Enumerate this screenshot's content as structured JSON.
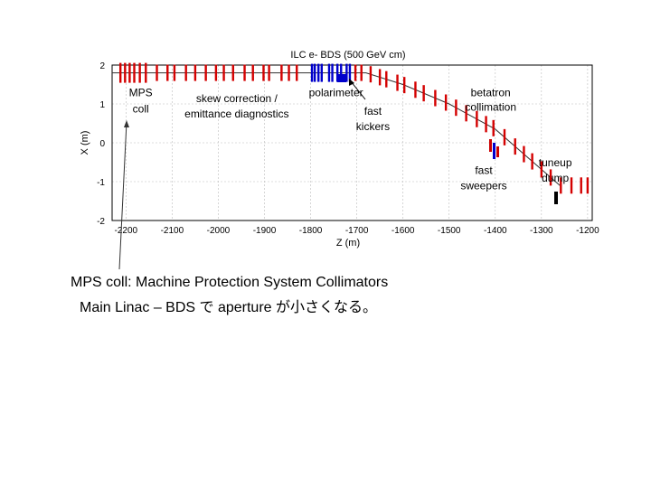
{
  "chart_data": {
    "type": "diagram",
    "title": "ILC e- BDS (500 GeV cm)",
    "xlabel": "Z (m)",
    "ylabel": "X (m)",
    "xlim": [
      -2230,
      -1190
    ],
    "ylim": [
      -2,
      2
    ],
    "xticks": [
      -2200,
      -2100,
      -2000,
      -1900,
      -1800,
      -1700,
      -1600,
      -1500,
      -1400,
      -1300,
      -1200
    ],
    "yticks": [
      2,
      1,
      0,
      -1,
      -2
    ],
    "grid": true,
    "beamline": [
      {
        "z": -2230,
        "x": 1.8
      },
      {
        "z": -1680,
        "x": 1.8
      },
      {
        "z": -1600,
        "x": 1.5
      },
      {
        "z": -1500,
        "x": 1.0
      },
      {
        "z": -1400,
        "x": 0.35
      },
      {
        "z": -1260,
        "x": -1.1
      }
    ],
    "red_elements_z": [
      -2212,
      -2202,
      -2192,
      -2182,
      -2170,
      -2157,
      -2133,
      -2110,
      -2095,
      -2070,
      -2050,
      -2027,
      -2005,
      -1988,
      -1968,
      -1943,
      -1925,
      -1902,
      -1890,
      -1863,
      -1847,
      -1830,
      -1703,
      -1690,
      -1670,
      -1650,
      -1636,
      -1612,
      -1597,
      -1573,
      -1555,
      -1530,
      -1507,
      -1485,
      -1463,
      -1440,
      -1420,
      -1404,
      -1380,
      -1357,
      -1338,
      -1320,
      -1300,
      -1280,
      -1258,
      -1235,
      -1214,
      -1200
    ],
    "blue_elements_z": [
      -1797,
      -1791,
      -1783,
      -1776,
      -1760,
      -1753,
      -1742,
      -1734,
      -1722,
      -1715
    ],
    "labels": [
      {
        "text": "MPS",
        "z": -2168,
        "x": 1.2
      },
      {
        "text": "coll",
        "z": -2168,
        "x": 0.78
      },
      {
        "text": "skew correction /",
        "z": -1960,
        "x": 1.05
      },
      {
        "text": "emittance diagnostics",
        "z": -1960,
        "x": 0.65
      },
      {
        "text": "polarimeter",
        "z": -1745,
        "x": 1.2
      },
      {
        "text": "fast",
        "z": -1665,
        "x": 0.72
      },
      {
        "text": "kickers",
        "z": -1665,
        "x": 0.32
      },
      {
        "text": "betatron",
        "z": -1410,
        "x": 1.2
      },
      {
        "text": "collimation",
        "z": -1410,
        "x": 0.82
      },
      {
        "text": "fast",
        "z": -1425,
        "x": -0.8
      },
      {
        "text": "sweepers",
        "z": -1425,
        "x": -1.2
      },
      {
        "text": "tuneup",
        "z": -1270,
        "x": -0.6
      },
      {
        "text": "dump",
        "z": -1270,
        "x": -1.0
      }
    ]
  },
  "caption": {
    "line1": "MPS coll: Machine Protection System Collimators",
    "line2": "Main Linac – BDS で aperture が小さくなる。"
  }
}
